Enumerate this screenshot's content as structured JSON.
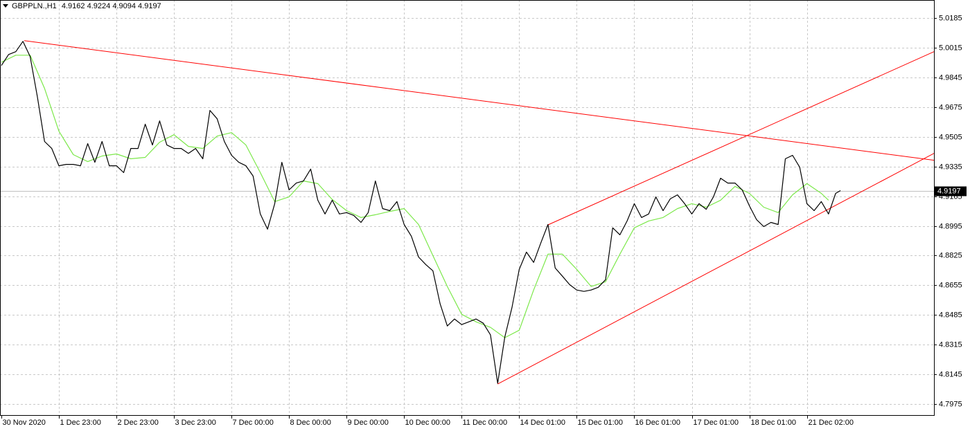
{
  "chart_data": {
    "type": "line",
    "symbol": "GBPPLN.,H1",
    "ohlc": [
      4.9162,
      4.9224,
      4.9094,
      4.9197
    ],
    "xlim": [
      0,
      389
    ],
    "ylim": [
      4.7912,
      5.0288
    ],
    "grid": true,
    "yticks": [
      5.0185,
      5.0015,
      4.9845,
      4.9675,
      4.9505,
      4.9335,
      4.9165,
      4.8995,
      4.8825,
      4.8655,
      4.8485,
      4.8315,
      4.8145,
      4.7975
    ],
    "xticks": [
      {
        "value": 0,
        "label": "30 Nov 2020"
      },
      {
        "value": 24,
        "label": "1 Dec 23:00"
      },
      {
        "value": 48,
        "label": "2 Dec 23:00"
      },
      {
        "value": 72,
        "label": "3 Dec 23:00"
      },
      {
        "value": 96,
        "label": "7 Dec 00:00"
      },
      {
        "value": 120,
        "label": "8 Dec 00:00"
      },
      {
        "value": 144,
        "label": "9 Dec 00:00"
      },
      {
        "value": 168,
        "label": "10 Dec 00:00"
      },
      {
        "value": 192,
        "label": "11 Dec 00:00"
      },
      {
        "value": 216,
        "label": "14 Dec 01:00"
      },
      {
        "value": 240,
        "label": "15 Dec 01:00"
      },
      {
        "value": 264,
        "label": "16 Dec 01:00"
      },
      {
        "value": 288,
        "label": "17 Dec 01:00"
      },
      {
        "value": 312,
        "label": "18 Dec 01:00"
      },
      {
        "value": 336,
        "label": "21 Dec 02:00"
      }
    ],
    "series": [
      {
        "color": "#000000",
        "x": [
          0,
          3,
          6,
          9,
          12,
          15,
          18,
          21,
          24,
          27,
          30,
          33,
          36,
          39,
          42,
          45,
          48,
          51,
          54,
          57,
          60,
          63,
          66,
          69,
          72,
          75,
          78,
          81,
          84,
          87,
          90,
          93,
          96,
          99,
          102,
          105,
          108,
          111,
          114,
          117,
          120,
          123,
          126,
          129,
          132,
          135,
          138,
          141,
          144,
          147,
          150,
          153,
          156,
          159,
          162,
          165,
          168,
          171,
          174,
          177,
          180,
          183,
          186,
          189,
          192,
          195,
          198,
          201,
          204,
          207,
          210,
          213,
          216,
          219,
          222,
          225,
          228,
          231,
          234,
          237,
          240,
          243,
          246,
          249,
          252,
          255,
          258,
          261,
          264,
          267,
          270,
          273,
          276,
          279,
          282,
          285,
          288,
          291,
          294,
          297,
          300,
          303,
          306,
          309,
          312,
          315,
          318,
          321,
          324,
          327,
          330,
          333,
          336,
          339,
          342,
          345,
          348,
          350
        ],
        "values": [
          4.9913,
          4.9976,
          4.9992,
          5.0051,
          4.9964,
          4.9735,
          4.9478,
          4.9438,
          4.9339,
          4.9347,
          4.9347,
          4.9339,
          4.9466,
          4.9359,
          4.9478,
          4.9339,
          4.9339,
          4.93,
          4.9438,
          4.9438,
          4.9577,
          4.9458,
          4.9596,
          4.9458,
          4.9438,
          4.9438,
          4.941,
          4.9438,
          4.9379,
          4.9656,
          4.9608,
          4.9478,
          4.9399,
          4.9359,
          4.9339,
          4.928,
          4.9063,
          4.8976,
          4.9122,
          4.9359,
          4.9201,
          4.924,
          4.9252,
          4.932,
          4.9142,
          4.9063,
          4.9142,
          4.9063,
          4.9071,
          4.9055,
          4.9015,
          4.9071,
          4.9252,
          4.9094,
          4.9082,
          4.9134,
          4.9003,
          4.8936,
          4.8817,
          4.8774,
          4.8738,
          4.8549,
          4.8422,
          4.8462,
          4.843,
          4.8446,
          4.8462,
          4.8438,
          4.8371,
          4.8094,
          4.8359,
          4.8529,
          4.8746,
          4.8845,
          4.8786,
          4.8897,
          4.9003,
          4.8754,
          4.8707,
          4.8659,
          4.8628,
          4.862,
          4.8628,
          4.8644,
          4.8687,
          4.8984,
          4.8944,
          4.9023,
          4.9122,
          4.9043,
          4.9063,
          4.9161,
          4.9082,
          4.915,
          4.9173,
          4.9122,
          4.9063,
          4.9122,
          4.909,
          4.9161,
          4.9268,
          4.924,
          4.924,
          4.9201,
          4.911,
          4.9031,
          4.8991,
          4.9015,
          4.9003,
          4.9379,
          4.9399,
          4.9331,
          4.9122,
          4.9082,
          4.9134,
          4.9063,
          4.9181,
          4.9197
        ]
      },
      {
        "color": "#7ce84a",
        "x": [
          0,
          6,
          12,
          18,
          24,
          30,
          36,
          42,
          48,
          54,
          60,
          66,
          72,
          78,
          84,
          90,
          96,
          102,
          108,
          114,
          120,
          126,
          132,
          138,
          144,
          150,
          156,
          162,
          168,
          174,
          180,
          186,
          192,
          198,
          204,
          210,
          216,
          222,
          228,
          234,
          240,
          246,
          252,
          258,
          264,
          270,
          276,
          282,
          288,
          294,
          300,
          306,
          312,
          318,
          324,
          330,
          336,
          342,
          345
        ],
        "values": [
          4.9932,
          4.9972,
          4.9972,
          4.9782,
          4.9537,
          4.9403,
          4.9363,
          4.9395,
          4.9407,
          4.9379,
          4.9387,
          4.9474,
          4.9517,
          4.945,
          4.9438,
          4.9509,
          4.9529,
          4.9458,
          4.93,
          4.9134,
          4.9161,
          4.9252,
          4.9237,
          4.9146,
          4.9082,
          4.9043,
          4.9059,
          4.9078,
          4.9094,
          4.9003,
          4.8825,
          4.8648,
          4.8489,
          4.8446,
          4.8414,
          4.8355,
          4.8398,
          4.8628,
          4.8833,
          4.8833,
          4.8746,
          4.8648,
          4.8675,
          4.8833,
          4.8984,
          4.9023,
          4.9043,
          4.9094,
          4.9122,
          4.9102,
          4.9142,
          4.9221,
          4.9181,
          4.9102,
          4.9071,
          4.9173,
          4.9237,
          4.9181,
          4.9142
        ]
      }
    ],
    "trendlines": [
      {
        "color": "#ff0000",
        "x": [
          9.5,
          389
        ],
        "values": [
          5.0055,
          4.9371
        ]
      },
      {
        "color": "#ff0000",
        "x": [
          227.7,
          389
        ],
        "values": [
          4.8999,
          4.9992
        ]
      },
      {
        "color": "#ff0000",
        "x": [
          207,
          389
        ],
        "values": [
          4.809,
          4.941
        ]
      }
    ]
  }
}
